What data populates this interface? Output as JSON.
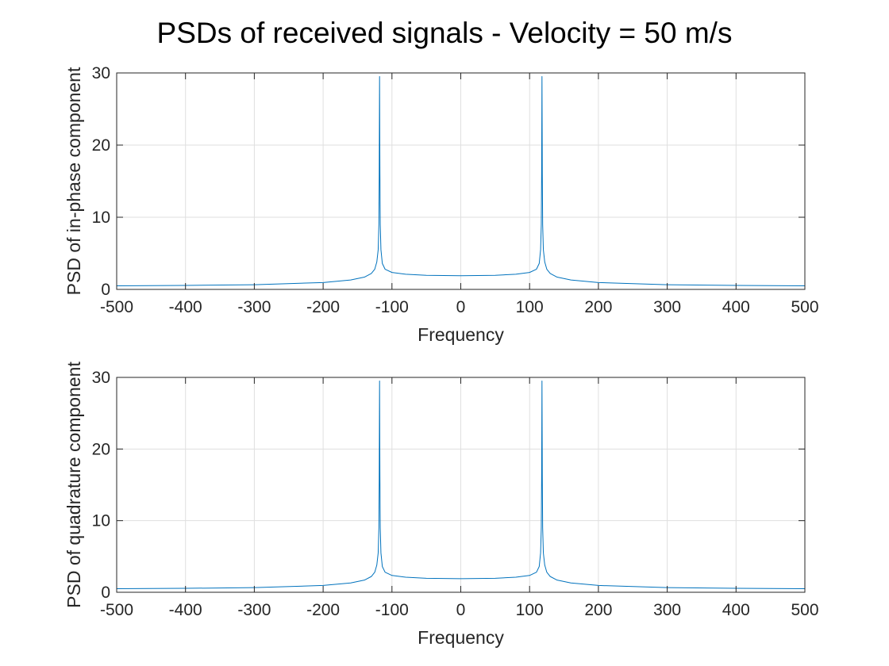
{
  "figure": {
    "title": "PSDs of received signals - Velocity = 50 m/s"
  },
  "chart_data": [
    {
      "type": "line",
      "xlabel": "Frequency",
      "ylabel": "PSD of in-phase component",
      "xlim": [
        -500,
        500
      ],
      "ylim": [
        0,
        30
      ],
      "xticks": [
        -500,
        -400,
        -300,
        -200,
        -100,
        0,
        100,
        200,
        300,
        400,
        500
      ],
      "yticks": [
        0,
        10,
        20,
        30
      ],
      "grid": true,
      "line_color": "#0072BD",
      "doppler_frequency": 118,
      "series": [
        {
          "x": [
            -500,
            -400,
            -300,
            -200,
            -160,
            -140,
            -130,
            -125,
            -122,
            -120,
            -119,
            -118.5,
            -118,
            -117.5,
            -117,
            -116,
            -114,
            -110,
            -100,
            -80,
            -50,
            0,
            50,
            80,
            100,
            110,
            114,
            116,
            117,
            117.5,
            118,
            118.5,
            119,
            120,
            122,
            125,
            130,
            140,
            160,
            200,
            300,
            400,
            500
          ],
          "y": [
            0.5,
            0.55,
            0.65,
            0.95,
            1.3,
            1.7,
            2.2,
            2.8,
            3.8,
            5.5,
            9,
            16,
            29.5,
            16,
            9,
            5.5,
            3.6,
            2.8,
            2.35,
            2.1,
            1.95,
            1.9,
            1.95,
            2.1,
            2.35,
            2.8,
            3.6,
            5.5,
            9,
            16,
            29.5,
            16,
            9,
            5.5,
            3.8,
            2.8,
            2.2,
            1.7,
            1.3,
            0.95,
            0.65,
            0.55,
            0.5
          ]
        }
      ]
    },
    {
      "type": "line",
      "xlabel": "Frequency",
      "ylabel": "PSD of quadrature component",
      "xlim": [
        -500,
        500
      ],
      "ylim": [
        0,
        30
      ],
      "xticks": [
        -500,
        -400,
        -300,
        -200,
        -100,
        0,
        100,
        200,
        300,
        400,
        500
      ],
      "yticks": [
        0,
        10,
        20,
        30
      ],
      "grid": true,
      "line_color": "#0072BD",
      "doppler_frequency": 118,
      "series": [
        {
          "x": [
            -500,
            -400,
            -300,
            -200,
            -160,
            -140,
            -130,
            -125,
            -122,
            -120,
            -119,
            -118.5,
            -118,
            -117.5,
            -117,
            -116,
            -114,
            -110,
            -100,
            -80,
            -50,
            0,
            50,
            80,
            100,
            110,
            114,
            116,
            117,
            117.5,
            118,
            118.5,
            119,
            120,
            122,
            125,
            130,
            140,
            160,
            200,
            300,
            400,
            500
          ],
          "y": [
            0.5,
            0.55,
            0.65,
            0.95,
            1.3,
            1.7,
            2.2,
            2.8,
            3.8,
            5.5,
            9,
            16,
            29.5,
            16,
            9,
            5.5,
            3.6,
            2.8,
            2.35,
            2.1,
            1.95,
            1.9,
            1.95,
            2.1,
            2.35,
            2.8,
            3.6,
            5.5,
            9,
            16,
            29.5,
            16,
            9,
            5.5,
            3.8,
            2.8,
            2.2,
            1.7,
            1.3,
            0.95,
            0.65,
            0.55,
            0.5
          ]
        }
      ]
    }
  ]
}
